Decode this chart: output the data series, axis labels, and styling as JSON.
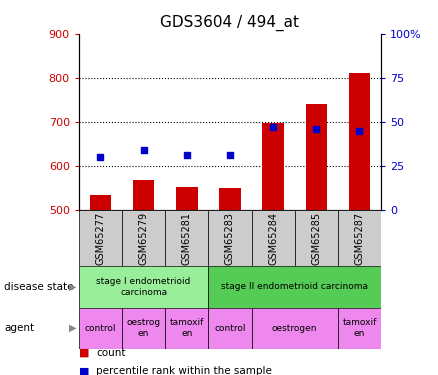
{
  "title": "GDS3604 / 494_at",
  "samples": [
    "GSM65277",
    "GSM65279",
    "GSM65281",
    "GSM65283",
    "GSM65284",
    "GSM65285",
    "GSM65287"
  ],
  "count_values": [
    535,
    567,
    553,
    549,
    698,
    740,
    812
  ],
  "percentile_values": [
    30,
    34,
    31,
    31,
    47,
    46,
    45
  ],
  "ylim_left": [
    500,
    900
  ],
  "ylim_right": [
    0,
    100
  ],
  "yticks_left": [
    500,
    600,
    700,
    800,
    900
  ],
  "yticks_right": [
    0,
    25,
    50,
    75,
    100
  ],
  "right_tick_labels": [
    "0",
    "25",
    "50",
    "75",
    "100%"
  ],
  "bar_color": "#cc0000",
  "dot_color": "#0000cc",
  "bar_base": 500,
  "xticklabel_bg": "#cccccc",
  "disease_state_groups": [
    {
      "label": "stage I endometrioid\ncarcinoma",
      "start": 0,
      "end": 3,
      "color": "#99ee99"
    },
    {
      "label": "stage II endometrioid carcinoma",
      "start": 3,
      "end": 7,
      "color": "#55cc55"
    }
  ],
  "agent_groups": [
    {
      "label": "control",
      "start": 0,
      "end": 1,
      "color": "#ee88ee"
    },
    {
      "label": "oestrog\nen",
      "start": 1,
      "end": 2,
      "color": "#ee88ee"
    },
    {
      "label": "tamoxif\nen",
      "start": 2,
      "end": 3,
      "color": "#ee88ee"
    },
    {
      "label": "control",
      "start": 3,
      "end": 4,
      "color": "#ee88ee"
    },
    {
      "label": "oestrogen",
      "start": 4,
      "end": 6,
      "color": "#ee88ee"
    },
    {
      "label": "tamoxif\nen",
      "start": 6,
      "end": 7,
      "color": "#ee88ee"
    }
  ],
  "tick_color_left": "#cc0000",
  "tick_color_right": "#0000cc",
  "background_color": "#ffffff",
  "chart_bg": "#ffffff",
  "grid_dotted_color": "#000000"
}
